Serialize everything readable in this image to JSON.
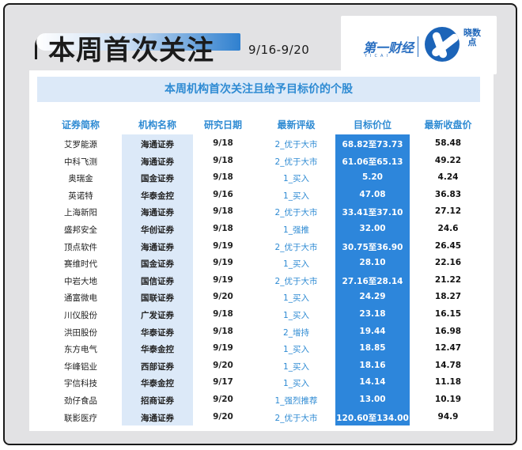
{
  "header": {
    "title": "本周首次关注",
    "date_range": "9/16-9/20"
  },
  "logo": {
    "yicai": "第一财经",
    "yicai_sub": "YICAI",
    "xiaoshu": "晓数点"
  },
  "banner": "本周机构首次关注且给予目标价的个股",
  "columns": {
    "name": "证券简称",
    "org": "机构名称",
    "date": "研究日期",
    "rating": "最新评级",
    "target": "目标价位",
    "close": "最新收盘价"
  },
  "rows": [
    {
      "name": "艾罗能源",
      "org": "海通证券",
      "date": "9/18",
      "rating": "2_优于大市",
      "target": "68.82至73.73",
      "close": "58.48"
    },
    {
      "name": "中科飞测",
      "org": "海通证券",
      "date": "9/18",
      "rating": "2_优于大市",
      "target": "61.06至65.13",
      "close": "49.22"
    },
    {
      "name": "奥瑞金",
      "org": "国金证券",
      "date": "9/18",
      "rating": "1_买入",
      "target": "5.20",
      "close": "4.24"
    },
    {
      "name": "英诺特",
      "org": "华泰金控",
      "date": "9/16",
      "rating": "1_买入",
      "target": "47.08",
      "close": "36.83"
    },
    {
      "name": "上海新阳",
      "org": "海通证券",
      "date": "9/18",
      "rating": "2_优于大市",
      "target": "33.41至37.10",
      "close": "27.12"
    },
    {
      "name": "盛邦安全",
      "org": "华创证券",
      "date": "9/18",
      "rating": "1_强推",
      "target": "32.00",
      "close": "24.6"
    },
    {
      "name": "顶点软件",
      "org": "海通证券",
      "date": "9/19",
      "rating": "2_优于大市",
      "target": "30.75至36.90",
      "close": "26.45"
    },
    {
      "name": "赛维时代",
      "org": "国金证券",
      "date": "9/19",
      "rating": "1_买入",
      "target": "28.10",
      "close": "22.16"
    },
    {
      "name": "中岩大地",
      "org": "国信证券",
      "date": "9/19",
      "rating": "2_优于大市",
      "target": "27.16至28.14",
      "close": "21.22"
    },
    {
      "name": "通富微电",
      "org": "国联证券",
      "date": "9/20",
      "rating": "1_买入",
      "target": "24.29",
      "close": "18.27"
    },
    {
      "name": "川仪股份",
      "org": "广发证券",
      "date": "9/18",
      "rating": "1_买入",
      "target": "23.18",
      "close": "16.15"
    },
    {
      "name": "洪田股份",
      "org": "华泰证券",
      "date": "9/18",
      "rating": "2_增持",
      "target": "19.44",
      "close": "16.98"
    },
    {
      "name": "东方电气",
      "org": "华泰金控",
      "date": "9/19",
      "rating": "1_买入",
      "target": "18.85",
      "close": "12.47"
    },
    {
      "name": "华峰铝业",
      "org": "西部证券",
      "date": "9/20",
      "rating": "1_买入",
      "target": "18.16",
      "close": "14.78"
    },
    {
      "name": "宇信科技",
      "org": "华泰金控",
      "date": "9/17",
      "rating": "1_买入",
      "target": "14.14",
      "close": "11.18"
    },
    {
      "name": "劲仔食品",
      "org": "招商证券",
      "date": "9/20",
      "rating": "1_强烈推荐",
      "target": "13.00",
      "close": "10.19"
    },
    {
      "name": "联影医疗",
      "org": "海通证券",
      "date": "9/20",
      "rating": "2_优于大市",
      "target": "120.60至134.00",
      "close": "94.9"
    }
  ],
  "colors": {
    "accent_blue": "#2f8bd3",
    "target_column": "#2d86db",
    "org_column": "#dce9f8"
  }
}
